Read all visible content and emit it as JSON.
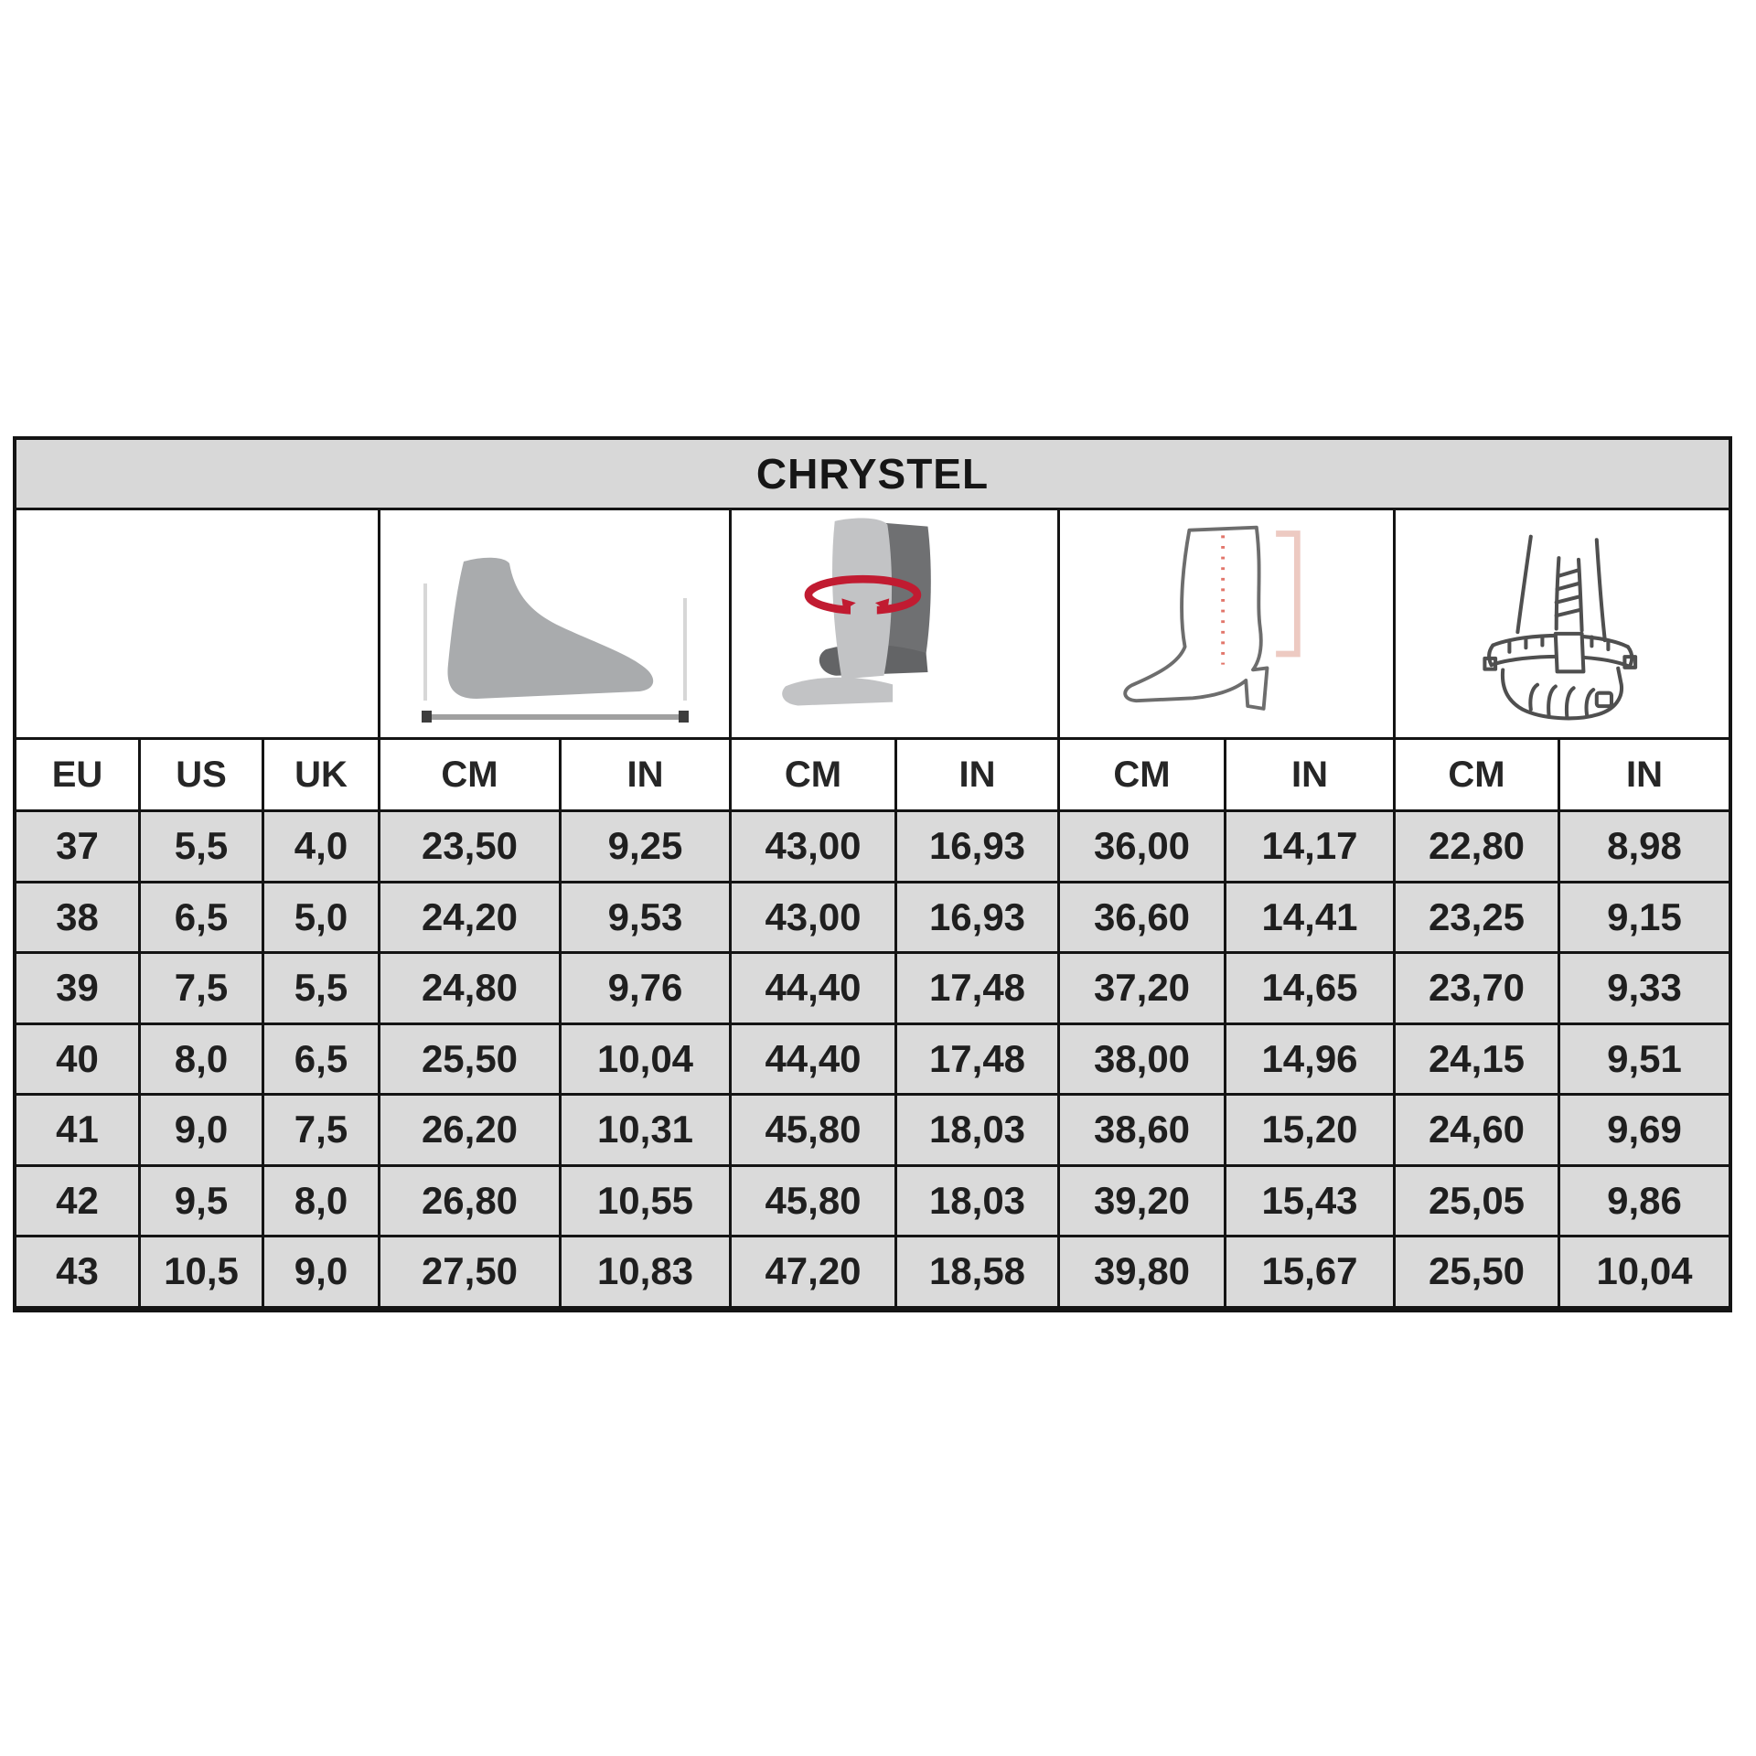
{
  "chart_data": {
    "type": "table",
    "title": "CHRYSTEL",
    "header_row": [
      "EU",
      "US",
      "UK",
      "CM",
      "IN",
      "CM",
      "IN",
      "CM",
      "IN",
      "CM",
      "IN"
    ],
    "column_groups": [
      {
        "icon": "foot-length-icon",
        "columns": [
          "CM",
          "IN"
        ]
      },
      {
        "icon": "calf-circumference-icon",
        "columns": [
          "CM",
          "IN"
        ]
      },
      {
        "icon": "boot-shaft-height-icon",
        "columns": [
          "CM",
          "IN"
        ]
      },
      {
        "icon": "foot-circumference-icon",
        "columns": [
          "CM",
          "IN"
        ]
      }
    ],
    "rows": [
      [
        "37",
        "5,5",
        "4,0",
        "23,50",
        "9,25",
        "43,00",
        "16,93",
        "36,00",
        "14,17",
        "22,80",
        "8,98"
      ],
      [
        "38",
        "6,5",
        "5,0",
        "24,20",
        "9,53",
        "43,00",
        "16,93",
        "36,60",
        "14,41",
        "23,25",
        "9,15"
      ],
      [
        "39",
        "7,5",
        "5,5",
        "24,80",
        "9,76",
        "44,40",
        "17,48",
        "37,20",
        "14,65",
        "23,70",
        "9,33"
      ],
      [
        "40",
        "8,0",
        "6,5",
        "25,50",
        "10,04",
        "44,40",
        "17,48",
        "38,00",
        "14,96",
        "24,15",
        "9,51"
      ],
      [
        "41",
        "9,0",
        "7,5",
        "26,20",
        "10,31",
        "45,80",
        "18,03",
        "38,60",
        "15,20",
        "24,60",
        "9,69"
      ],
      [
        "42",
        "9,5",
        "8,0",
        "26,80",
        "10,55",
        "45,80",
        "18,03",
        "39,20",
        "15,43",
        "25,05",
        "9,86"
      ],
      [
        "43",
        "10,5",
        "9,0",
        "27,50",
        "10,83",
        "47,20",
        "18,58",
        "39,80",
        "15,67",
        "25,50",
        "10,04"
      ]
    ],
    "layout": {
      "grid": true,
      "decimal_separator": ","
    }
  },
  "icons": [
    "foot-length-icon",
    "calf-circumference-icon",
    "boot-shaft-height-icon",
    "foot-circumference-icon"
  ],
  "colors": {
    "title_bg": "#d8d8d8",
    "data_cell_bg": "#dadada",
    "header_cell_bg": "#ffffff",
    "border": "#141414",
    "accent_red": "#c11b31",
    "pale_red_bracket": "#edcac2",
    "dotted_red_line": "#e2766b",
    "silhouette_gray": "#a9abad",
    "dark_leg_gray": "#6f7072",
    "outline_gray": "#4f4f4f"
  }
}
